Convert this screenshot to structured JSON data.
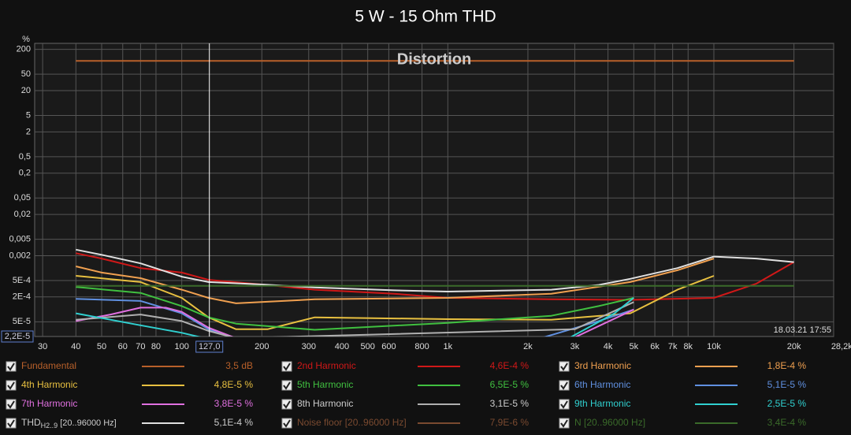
{
  "chart_data": {
    "type": "line",
    "title": "5 W - 15 Ohm THD",
    "plot_title": "Distortion",
    "timestamp": "18.03.21 17:55",
    "y_unit": "%",
    "log_x": true,
    "log_y": true,
    "grid": true,
    "xlim": [
      28,
      28200
    ],
    "ylim": [
      2.2e-05,
      280
    ],
    "xticks": [
      30,
      40,
      50,
      60,
      70,
      80,
      100,
      200,
      300,
      400,
      500,
      600,
      800,
      {
        "value": 1000,
        "label": "1k"
      },
      {
        "value": 2000,
        "label": "2k"
      },
      {
        "value": 3000,
        "label": "3k"
      },
      {
        "value": 4000,
        "label": "4k"
      },
      {
        "value": 5000,
        "label": "5k"
      },
      {
        "value": 6000,
        "label": "6k"
      },
      {
        "value": 7000,
        "label": "7k"
      },
      {
        "value": 8000,
        "label": "8k"
      },
      {
        "value": 10000,
        "label": "10k"
      },
      {
        "value": 20000,
        "label": "20k"
      },
      {
        "value": 28200,
        "label": "28,2kHz"
      }
    ],
    "yticks": [
      200,
      50,
      20,
      5,
      2,
      {
        "value": 0.5,
        "label": "0,5"
      },
      {
        "value": 0.2,
        "label": "0,2"
      },
      {
        "value": 0.05,
        "label": "0,05"
      },
      {
        "value": 0.02,
        "label": "0,02"
      },
      {
        "value": 0.005,
        "label": "0,005"
      },
      {
        "value": 0.002,
        "label": "0,002"
      },
      {
        "value": 0.0005,
        "label": "5E-4"
      },
      {
        "value": 0.0002,
        "label": "2E-4"
      },
      {
        "value": 5e-05,
        "label": "5E-5"
      }
    ],
    "x_cursor": {
      "value": 127,
      "label": "127,0"
    },
    "y_cursor": {
      "value": 2.2e-05,
      "label": "2,2E-5"
    },
    "series": [
      {
        "name": "Fundamental",
        "color": "#b8602a",
        "readout": "3,5 dB",
        "x": [
          40,
          20000
        ],
        "values": [
          105,
          105
        ]
      },
      {
        "name": "2nd Harmonic",
        "color": "#d01818",
        "readout": "4,6E-4 %",
        "x": [
          40,
          50,
          70,
          100,
          126,
          200,
          316,
          627,
          1000,
          2450,
          4850,
          10000,
          14450,
          20000
        ],
        "values": [
          0.0023,
          0.0017,
          0.001,
          0.00078,
          0.00052,
          0.0004,
          0.0003,
          0.00024,
          0.00019,
          0.000175,
          0.00017,
          0.00019,
          0.00042,
          0.0014
        ]
      },
      {
        "name": "3rd Harmonic",
        "color": "#f0a050",
        "readout": "1,8E-4 %",
        "x": [
          40,
          50,
          70,
          100,
          126,
          160,
          316,
          1000,
          2450,
          4850,
          7300,
          10000
        ],
        "values": [
          0.0011,
          0.00078,
          0.00057,
          0.0003,
          0.00019,
          0.00014,
          0.000175,
          0.00019,
          0.00024,
          0.00046,
          0.00089,
          0.0017
        ]
      },
      {
        "name": "4th Harmonic",
        "color": "#e8c040",
        "readout": "4,8E-5 %",
        "x": [
          40,
          70,
          100,
          126,
          160,
          210,
          316,
          1000,
          2450,
          4850,
          7300,
          10000
        ],
        "values": [
          0.00065,
          0.00046,
          0.00019,
          6.4e-05,
          3.3e-05,
          3.3e-05,
          6.4e-05,
          5.8e-05,
          5.6e-05,
          8e-05,
          0.0003,
          0.00065
        ]
      },
      {
        "name": "5th Harmonic",
        "color": "#40c040",
        "readout": "6,5E-5 %",
        "x": [
          40,
          70,
          100,
          126,
          160,
          316,
          1000,
          2450,
          3690,
          5000
        ],
        "values": [
          0.00035,
          0.00025,
          0.00012,
          6.4e-05,
          4.5e-05,
          3.2e-05,
          4.7e-05,
          7e-05,
          0.00012,
          0.00019
        ]
      },
      {
        "name": "6th Harmonic",
        "color": "#6090e0",
        "readout": "5,1E-5 %",
        "x": [
          40,
          70,
          100,
          126,
          160,
          1520,
          2290,
          3690,
          5000
        ],
        "values": [
          0.00018,
          0.00016,
          8e-05,
          3.3e-05,
          1.9e-05,
          1.8e-05,
          2.1e-05,
          5.2e-05,
          9.9e-05
        ]
      },
      {
        "name": "7th Harmonic",
        "color": "#e070e0",
        "readout": "3,8E-5 %",
        "x": [
          40,
          54,
          70,
          87,
          100,
          126,
          160,
          3000,
          5000
        ],
        "values": [
          5.2e-05,
          7.5e-05,
          0.00011,
          0.00011,
          8.7e-05,
          3.6e-05,
          2e-05,
          2.1e-05,
          9.9e-05
        ]
      },
      {
        "name": "8th Harmonic",
        "color": "#b0b0b0",
        "readout": "3,1E-5 %",
        "x": [
          40,
          70,
          100,
          126,
          160,
          3000,
          5000
        ],
        "values": [
          5.6e-05,
          7.5e-05,
          5.2e-05,
          3e-05,
          2e-05,
          3.3e-05,
          0.00015
        ]
      },
      {
        "name": "9th Harmonic",
        "color": "#30d0d0",
        "readout": "2,5E-5 %",
        "x": [
          40,
          70,
          100,
          126,
          2810,
          4230,
          5000
        ],
        "values": [
          8e-05,
          4.1e-05,
          2.7e-05,
          1.9e-05,
          1.9e-05,
          8e-05,
          0.00019
        ]
      },
      {
        "name": "THD",
        "name_sub": "H2..9",
        "name_suffix": "[20..96000 Hz]",
        "color": "#e0e0e0",
        "readout": "5,1E-4 %",
        "x": [
          40,
          50,
          70,
          100,
          126,
          200,
          316,
          627,
          1000,
          2450,
          3690,
          4850,
          7300,
          10000,
          14450,
          20000
        ],
        "values": [
          0.0028,
          0.0021,
          0.0013,
          0.00062,
          0.00046,
          0.0004,
          0.00034,
          0.00029,
          0.00027,
          0.0003,
          0.00039,
          0.00055,
          0.001,
          0.0019,
          0.0017,
          0.0014
        ]
      },
      {
        "name": "Noise floor [20..96000 Hz]",
        "color": "#7a4a30",
        "readout": "7,9E-6 %",
        "dimmed": true
      },
      {
        "name": "N [20..96000 Hz]",
        "color": "#3a6a2a",
        "readout": "3,4E-4 %",
        "dimmed": true,
        "x": [
          40,
          20000
        ],
        "values": [
          0.00037,
          0.00037
        ]
      }
    ]
  }
}
